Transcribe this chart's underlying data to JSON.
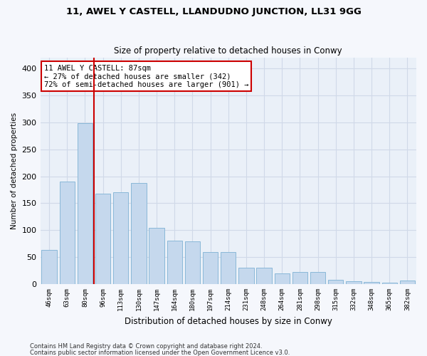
{
  "title": "11, AWEL Y CASTELL, LLANDUDNO JUNCTION, LL31 9GG",
  "subtitle": "Size of property relative to detached houses in Conwy",
  "xlabel": "Distribution of detached houses by size in Conwy",
  "ylabel": "Number of detached properties",
  "categories": [
    "46sqm",
    "63sqm",
    "80sqm",
    "96sqm",
    "113sqm",
    "130sqm",
    "147sqm",
    "164sqm",
    "180sqm",
    "197sqm",
    "214sqm",
    "231sqm",
    "248sqm",
    "264sqm",
    "281sqm",
    "298sqm",
    "315sqm",
    "332sqm",
    "348sqm",
    "365sqm",
    "382sqm"
  ],
  "values": [
    63,
    190,
    298,
    168,
    170,
    187,
    105,
    80,
    79,
    60,
    60,
    30,
    30,
    20,
    22,
    22,
    8,
    6,
    4,
    3,
    7
  ],
  "bar_color": "#c5d8ed",
  "bar_edge_color": "#8ab8d8",
  "grid_color": "#d0d9e8",
  "bg_color": "#eaf0f8",
  "fig_bg_color": "#f5f7fc",
  "property_line_color": "#cc0000",
  "annotation_text": "11 AWEL Y CASTELL: 87sqm\n← 27% of detached houses are smaller (342)\n72% of semi-detached houses are larger (901) →",
  "annotation_box_color": "#ffffff",
  "annotation_box_edge": "#cc0000",
  "ylim": [
    0,
    420
  ],
  "yticks": [
    0,
    50,
    100,
    150,
    200,
    250,
    300,
    350,
    400
  ],
  "footer1": "Contains HM Land Registry data © Crown copyright and database right 2024.",
  "footer2": "Contains public sector information licensed under the Open Government Licence v3.0."
}
